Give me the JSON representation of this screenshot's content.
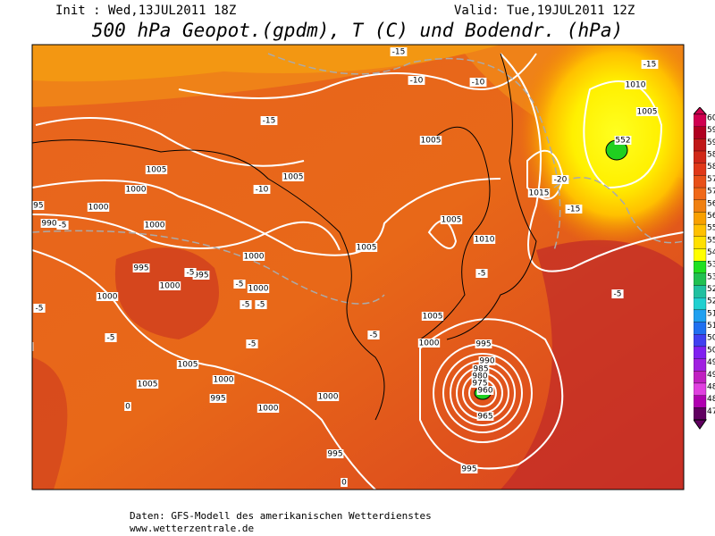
{
  "header": {
    "init": "Init : Wed,13JUL2011 18Z",
    "valid": "Valid: Tue,19JUL2011 12Z",
    "title": "500 hPa Geopot.(gpdm), T (C) und Bodendr. (hPa)"
  },
  "map": {
    "contour_labels": [
      "1005",
      "1000",
      "995",
      "990",
      "-5",
      "1000",
      "1000",
      "995",
      "995",
      "1000",
      "1000",
      "-5",
      "-5",
      "1000",
      "1000",
      "-5",
      "-5",
      "-5",
      "995",
      "1005",
      "1005",
      "1000",
      "995",
      "1000",
      "1000",
      "995",
      "-15",
      "1005",
      "-10",
      "1005",
      "-10",
      "-10",
      "-15",
      "1005",
      "1005",
      "1010",
      "1015",
      "-5",
      "1005",
      "1000",
      "995",
      "990",
      "985",
      "980",
      "975",
      "960",
      "965",
      "995",
      "-20",
      "-15",
      "-5",
      "1005",
      "1010",
      "-15",
      "552",
      "-5",
      "-5",
      "-5",
      "0",
      "0"
    ]
  },
  "colorbar": {
    "labels": [
      "60",
      "59",
      "59",
      "58",
      "58",
      "57",
      "57",
      "56",
      "56",
      "55",
      "55",
      "54",
      "53",
      "53",
      "52",
      "52",
      "51",
      "51",
      "50",
      "50",
      "49",
      "49",
      "48",
      "48",
      "47"
    ]
  },
  "footer": {
    "source": "Daten: GFS-Modell des amerikanischen Wetterdienstes",
    "url": "www.wetterzentrale.de"
  }
}
